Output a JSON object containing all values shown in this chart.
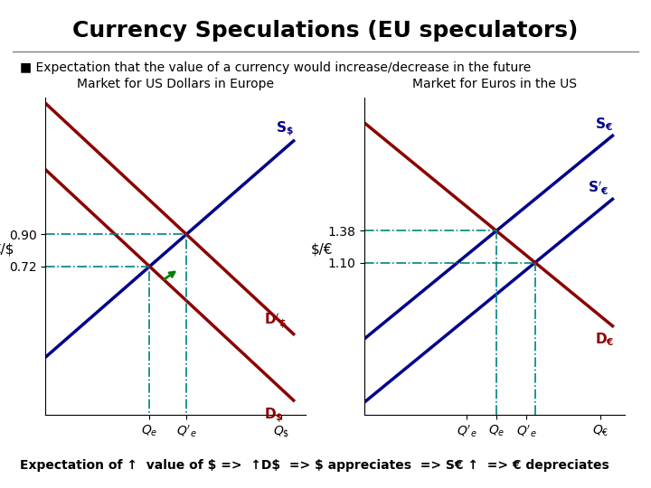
{
  "title": "Currency Speculations (EU speculators)",
  "subtitle": "■ Expectation that the value of a currency would increase/decrease in the future",
  "left_chart_title": "Market for US Dollars in Europe",
  "right_chart_title": "Market for Euros in the US",
  "left_ylabel": "€/$",
  "left_xlabel": "",
  "right_ylabel": "$/€",
  "right_xlabel": "",
  "left_yticks": [
    0.72,
    0.9
  ],
  "right_yticks": [
    1.1,
    1.38
  ],
  "left_xticklabels": [
    "Qₑ",
    "Q`ₑ",
    "Q$"
  ],
  "right_xticklabels": [
    "Q`ₑ",
    "Qₑ",
    "Q`ₑ",
    "Q€"
  ],
  "supply_color": "#00008B",
  "demand_color": "#8B0000",
  "dashed_color": "#008080",
  "arrow_color": "#008000",
  "bottom_text": "Expectation of ↑ value of $ => ↑D$ => $ appreciates => S€ ↑ => € depreciates",
  "bg_color": "#ffffff"
}
